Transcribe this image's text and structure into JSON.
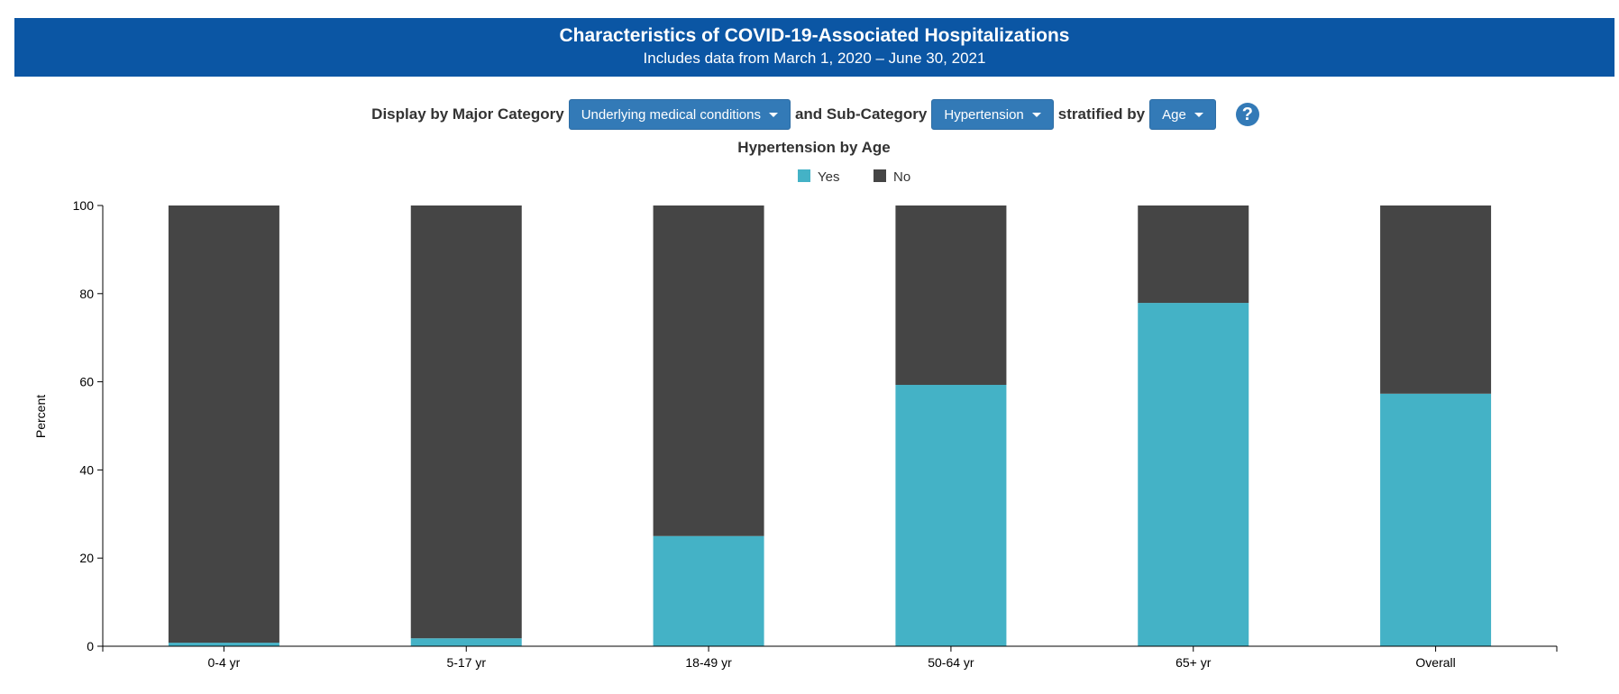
{
  "header": {
    "title": "Characteristics of COVID-19-Associated Hospitalizations",
    "subtitle": "Includes data from March 1, 2020 – June 30, 2021"
  },
  "controls": {
    "major_label": "Display by Major Category",
    "major_value": "Underlying medical conditions",
    "sub_label": "and Sub-Category",
    "sub_value": "Hypertension",
    "strat_label": "stratified by",
    "strat_value": "Age",
    "help_glyph": "?"
  },
  "chart_data": {
    "type": "bar",
    "stacked": true,
    "title": "Hypertension by Age",
    "xlabel": "",
    "ylabel": "Percent",
    "ylim": [
      0,
      100
    ],
    "yticks": [
      0,
      20,
      40,
      60,
      80,
      100
    ],
    "categories": [
      "0-4 yr",
      "5-17 yr",
      "18-49 yr",
      "50-64 yr",
      "65+ yr",
      "Overall"
    ],
    "series": [
      {
        "name": "Yes",
        "color": "#44b2c6",
        "values": [
          0.8,
          1.8,
          25.0,
          59.3,
          77.9,
          57.3
        ]
      },
      {
        "name": "No",
        "color": "#454545",
        "values": [
          99.2,
          98.2,
          75.0,
          40.7,
          22.1,
          42.7
        ]
      }
    ],
    "legend_position": "top-center",
    "grid": false
  }
}
